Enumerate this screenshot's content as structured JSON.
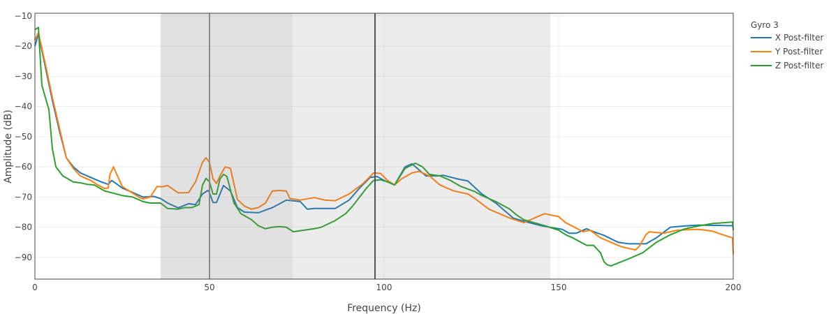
{
  "chart_data": {
    "type": "line",
    "xlabel": "Frequency (Hz)",
    "ylabel": "Amplitude (dB)",
    "xlim": [
      0,
      200
    ],
    "ylim": [
      -97.2,
      -9.1
    ],
    "xticks": [
      0,
      50,
      100,
      150,
      200
    ],
    "yticks": [
      -10,
      -20,
      -30,
      -40,
      -50,
      -60,
      -70,
      -80,
      -90
    ],
    "grid": true,
    "legend": {
      "title": "Gyro 3",
      "placement": "right-top"
    },
    "shaded_regions": [
      {
        "from": 36,
        "to": 73.8,
        "shade": "dark"
      },
      {
        "from": 73.8,
        "to": 147.6,
        "shade": "light"
      }
    ],
    "vertical_lines": [
      {
        "x": 50,
        "color": "#8a8a8a"
      },
      {
        "x": 97.4,
        "color": "#555555"
      }
    ],
    "series": [
      {
        "name": "X Post-filter",
        "color": "#1f77b4",
        "x": [
          0,
          1,
          3,
          5,
          7,
          9,
          11,
          13,
          16,
          19,
          21,
          22,
          25,
          28,
          31,
          34,
          36,
          38,
          41,
          44,
          46,
          48,
          49.5,
          50,
          51,
          52,
          54,
          56,
          58,
          60,
          64,
          68,
          70,
          72,
          76,
          78,
          80,
          86,
          90,
          93,
          96,
          98,
          100,
          103,
          106,
          108,
          112,
          115,
          117,
          121,
          124,
          128,
          132,
          137,
          140,
          145,
          150,
          151,
          153,
          155,
          158,
          160,
          163,
          167,
          170,
          175,
          178,
          182,
          186,
          190,
          195,
          199.8,
          200
        ],
        "y": [
          -20,
          -16,
          -27,
          -38,
          -48,
          -57,
          -60,
          -62,
          -63.5,
          -65,
          -65.8,
          -64.5,
          -67,
          -68.5,
          -70,
          -69.8,
          -70.5,
          -72,
          -73.6,
          -72.2,
          -72.5,
          -69,
          -67.8,
          -68.5,
          -71.8,
          -71.8,
          -66.2,
          -68,
          -73.5,
          -75,
          -75.2,
          -73.5,
          -72.3,
          -71,
          -71.5,
          -74,
          -73.8,
          -73.8,
          -71,
          -67,
          -63.5,
          -63.2,
          -64.5,
          -66,
          -60,
          -59,
          -63,
          -63,
          -62.8,
          -64,
          -64.7,
          -69,
          -72,
          -77,
          -78,
          -79.5,
          -80.5,
          -80.7,
          -82,
          -82,
          -80.5,
          -81.5,
          -82.7,
          -85,
          -85.5,
          -85.5,
          -83.5,
          -80,
          -79.6,
          -79.3,
          -79.4,
          -79.5,
          -80
        ]
      },
      {
        "name": "Y Post-filter",
        "color": "#ff7f0e",
        "x": [
          0,
          1,
          3,
          5,
          7,
          9,
          11,
          13,
          16,
          18,
          20,
          21,
          21.5,
          22.5,
          25,
          27,
          30,
          31,
          33,
          35,
          36.5,
          38,
          41,
          43,
          44,
          46,
          48,
          49,
          50,
          51,
          52,
          53,
          54.5,
          56,
          58,
          60,
          62,
          64,
          66,
          68,
          70,
          72,
          73,
          76,
          80,
          83,
          86,
          90,
          94,
          97,
          99,
          101,
          103,
          105,
          108,
          110,
          113,
          116,
          120,
          124,
          126,
          130,
          136,
          140,
          143,
          146,
          150,
          152,
          157,
          159,
          162,
          168,
          172,
          173,
          175,
          176,
          180,
          184,
          190,
          194,
          197,
          199.8,
          200
        ],
        "y": [
          -18,
          -15.5,
          -26,
          -37,
          -47,
          -57,
          -60.5,
          -63,
          -64.5,
          -66,
          -67.2,
          -67,
          -62.5,
          -60,
          -66.5,
          -68,
          -70.2,
          -70.6,
          -70,
          -66.5,
          -66.6,
          -66.2,
          -68.6,
          -68.6,
          -68.5,
          -65,
          -58.5,
          -57,
          -58.5,
          -64,
          -65.5,
          -63,
          -60,
          -60.5,
          -70.8,
          -73,
          -74,
          -73.5,
          -72,
          -68,
          -67.8,
          -68,
          -70.5,
          -71,
          -70.2,
          -71,
          -71.2,
          -69,
          -65.5,
          -62,
          -62.2,
          -64.5,
          -66,
          -64,
          -62,
          -61.5,
          -63,
          -66,
          -68,
          -69,
          -70.5,
          -74,
          -77,
          -78.5,
          -77,
          -75.5,
          -76.5,
          -78.5,
          -81.5,
          -81,
          -83.5,
          -86.5,
          -87.5,
          -86.5,
          -82.5,
          -81.5,
          -82,
          -81,
          -80.7,
          -81.3,
          -82.5,
          -83.5,
          -89
        ]
      },
      {
        "name": "Z Post-filter",
        "color": "#2ca02c",
        "x": [
          0,
          1,
          2,
          4,
          5,
          6,
          8,
          11,
          13,
          15,
          17,
          20,
          25,
          28,
          31,
          33,
          36,
          38,
          41,
          43,
          45,
          47,
          48,
          49,
          50,
          51,
          52,
          53,
          54,
          55,
          57,
          59,
          62,
          64,
          66,
          68,
          70,
          72,
          74,
          80,
          82,
          86,
          89,
          91,
          95,
          97,
          99,
          101,
          103,
          106,
          109,
          111,
          113,
          116,
          119,
          122,
          126,
          128,
          132,
          136,
          138,
          140,
          146,
          150,
          152,
          154,
          158,
          160,
          162,
          163,
          164,
          165,
          170,
          174,
          178,
          182,
          186,
          190,
          194,
          199.8,
          200
        ],
        "y": [
          -14.5,
          -13.8,
          -33,
          -41,
          -54,
          -60,
          -63,
          -65,
          -65.3,
          -65.8,
          -66,
          -68,
          -69.5,
          -70,
          -71.5,
          -72,
          -72,
          -73.8,
          -74,
          -73.5,
          -73.5,
          -72.5,
          -66,
          -63.8,
          -65,
          -69,
          -69,
          -64,
          -62.5,
          -63.2,
          -72,
          -75.5,
          -77.5,
          -79.5,
          -80.5,
          -80,
          -79.8,
          -80,
          -81.5,
          -80.5,
          -80,
          -77.8,
          -75.5,
          -73,
          -67,
          -64.5,
          -64.3,
          -65,
          -66,
          -60.5,
          -58.8,
          -60,
          -62.5,
          -63,
          -64.5,
          -66.5,
          -68.2,
          -69.5,
          -71.5,
          -74,
          -76,
          -77.5,
          -79.5,
          -81,
          -82.5,
          -83.5,
          -86,
          -86,
          -88.5,
          -91.5,
          -92.5,
          -92.8,
          -90.5,
          -88.5,
          -85,
          -82.5,
          -80.6,
          -79.6,
          -78.8,
          -78.3,
          -81
        ]
      }
    ]
  }
}
